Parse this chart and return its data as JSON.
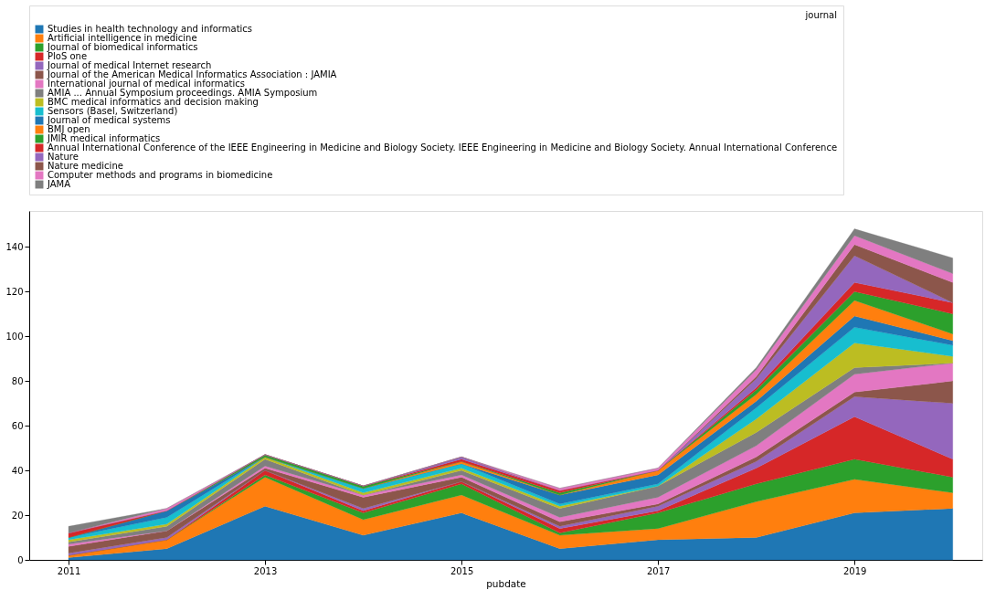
{
  "chart_data": {
    "type": "area",
    "stacked": true,
    "xlabel": "pubdate",
    "legend_title": "journal",
    "legend": "top",
    "grid": false,
    "x": [
      2011,
      2012,
      2013,
      2014,
      2015,
      2016,
      2017,
      2018,
      2019,
      2020
    ],
    "xlim": [
      2010.6,
      2020.3
    ],
    "xticks": [
      2011,
      2013,
      2015,
      2017,
      2019
    ],
    "ylim": [
      0,
      156
    ],
    "yticks": [
      0,
      20,
      40,
      60,
      80,
      100,
      120,
      140
    ],
    "series": [
      {
        "name": "Studies in health technology and informatics",
        "color": "#1f77b4",
        "values": [
          1,
          5,
          24,
          11,
          21,
          5,
          9,
          10,
          21,
          23
        ]
      },
      {
        "name": "Artificial intelligence in medicine",
        "color": "#ff7f0e",
        "values": [
          1,
          4,
          13,
          7,
          8,
          6,
          5,
          16,
          15,
          7
        ]
      },
      {
        "name": "Journal of biomedical informatics",
        "color": "#2ca02c",
        "values": [
          0,
          0,
          1,
          3,
          5,
          1,
          7,
          8,
          9,
          7
        ]
      },
      {
        "name": "PloS one",
        "color": "#d62728",
        "values": [
          0,
          0,
          2,
          1,
          1,
          2,
          1,
          7,
          19,
          8
        ]
      },
      {
        "name": "Journal of medical Internet research",
        "color": "#9467bd",
        "values": [
          1,
          1,
          0,
          1,
          0,
          1,
          2,
          3,
          9,
          25
        ]
      },
      {
        "name": "Journal of the American Medical Informatics Association : JAMIA",
        "color": "#8c564b",
        "values": [
          3,
          3,
          1,
          5,
          2,
          2,
          1,
          2,
          2,
          10
        ]
      },
      {
        "name": "International journal of medical informatics",
        "color": "#e377c2",
        "values": [
          1,
          0,
          1,
          1,
          1,
          2,
          3,
          5,
          8,
          8
        ]
      },
      {
        "name": "AMIA ... Annual Symposium proceedings. AMIA Symposium",
        "color": "#7f7f7f",
        "values": [
          1,
          2,
          3,
          0,
          2,
          4,
          5,
          6,
          3,
          0
        ]
      },
      {
        "name": "BMC medical informatics and decision making",
        "color": "#bcbd22",
        "values": [
          1,
          1,
          1,
          1,
          1,
          1,
          0,
          6,
          11,
          3
        ]
      },
      {
        "name": "Sensors (Basel, Switzerland)",
        "color": "#17becf",
        "values": [
          1,
          3,
          0,
          2,
          2,
          1,
          1,
          5,
          7,
          5
        ]
      },
      {
        "name": "Journal of medical systems",
        "color": "#1f77b4",
        "values": [
          0,
          3,
          0,
          0,
          0,
          4,
          4,
          3,
          5,
          2
        ]
      },
      {
        "name": "BMJ open",
        "color": "#ff7f0e",
        "values": [
          0,
          0,
          0,
          0,
          1,
          0,
          2,
          3,
          7,
          3
        ]
      },
      {
        "name": "JMIR medical informatics",
        "color": "#2ca02c",
        "values": [
          0,
          0,
          1,
          1,
          0,
          1,
          0,
          2,
          4,
          9
        ]
      },
      {
        "name": "Annual International Conference of the IEEE Engineering in Medicine and Biology Society. IEEE Engineering in Medicine and Biology Society. Annual International Conference",
        "color": "#d62728",
        "values": [
          2,
          0,
          0,
          0,
          1,
          1,
          0,
          1,
          4,
          5
        ]
      },
      {
        "name": "Nature",
        "color": "#9467bd",
        "values": [
          0,
          0,
          0,
          0,
          1,
          0,
          0,
          4,
          12,
          0
        ]
      },
      {
        "name": "Nature medicine",
        "color": "#8c564b",
        "values": [
          0,
          0,
          0,
          0,
          0,
          0,
          0,
          1,
          5,
          9
        ]
      },
      {
        "name": "Computer methods and programs in biomedicine",
        "color": "#e377c2",
        "values": [
          0,
          1,
          0,
          0,
          0,
          1,
          1,
          3,
          4,
          4
        ]
      },
      {
        "name": "JAMA",
        "color": "#7f7f7f",
        "values": [
          3,
          0,
          0,
          0,
          0,
          0,
          0,
          1,
          3,
          7
        ]
      }
    ]
  }
}
